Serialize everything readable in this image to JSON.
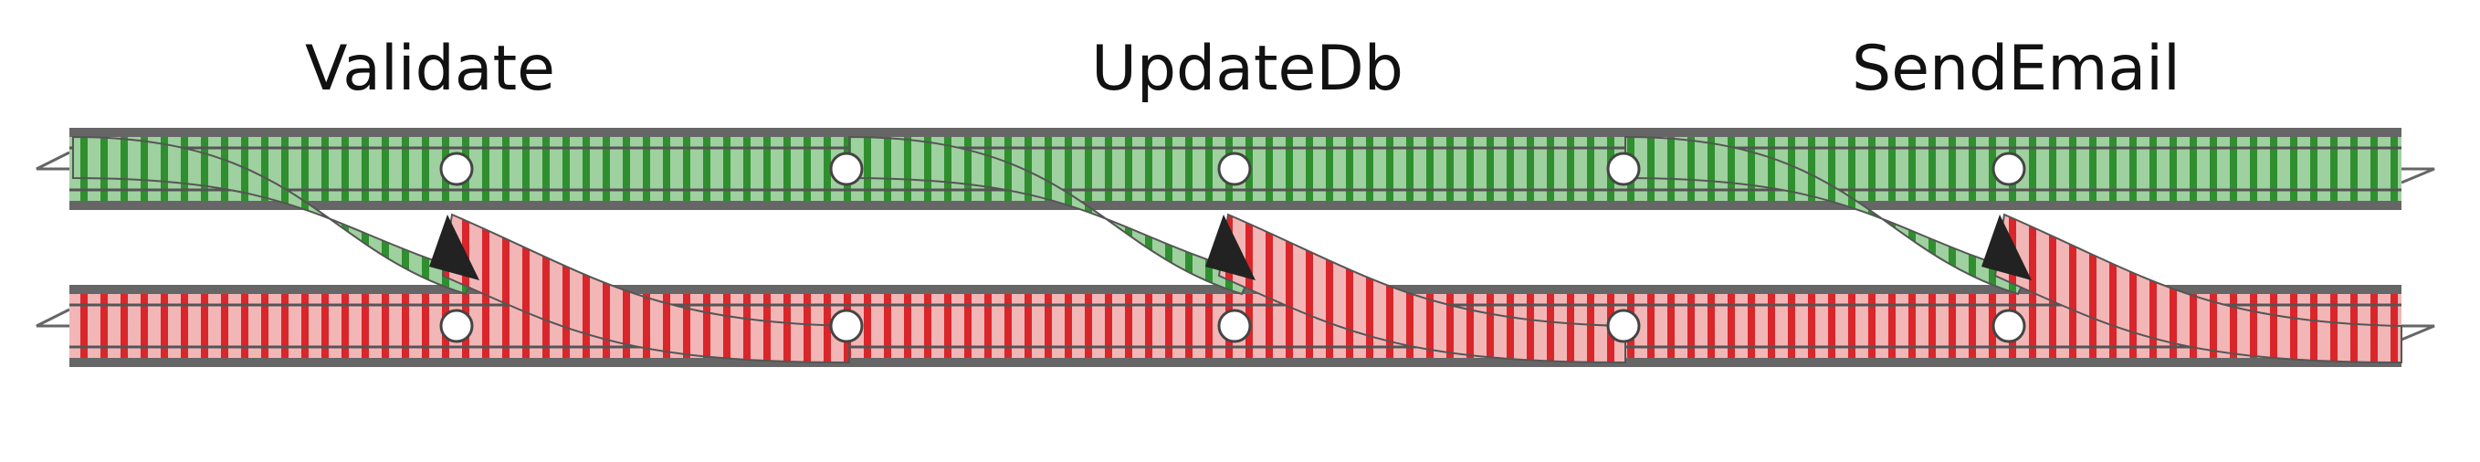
{
  "steps": [
    {
      "label": "Validate"
    },
    {
      "label": "UpdateDb"
    },
    {
      "label": "SendEmail"
    }
  ],
  "tracks": {
    "success": {
      "color": "#2e8b2e",
      "tint": "#8fc98f"
    },
    "failure": {
      "color": "#d9262b",
      "tint": "#f0a6a6"
    },
    "rail": "#555555",
    "border": "#5e5e5e"
  }
}
